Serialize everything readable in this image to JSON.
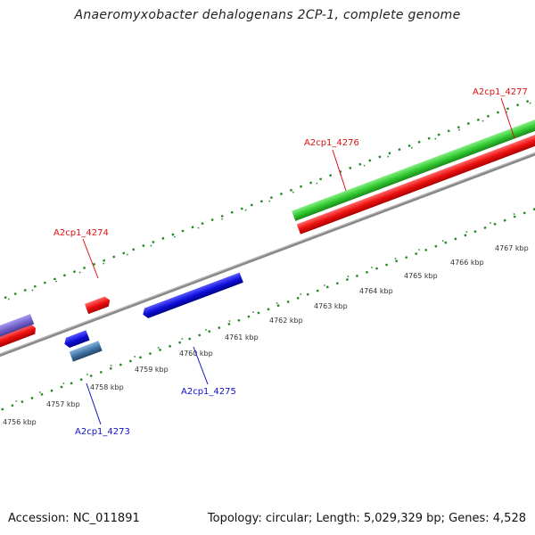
{
  "title": "Anaeromyxobacter dehalogenans 2CP-1, complete genome",
  "footer": {
    "accession": "Accession: NC_011891",
    "summary": "Topology: circular; Length: 5,029,329 bp; Genes: 4,528"
  },
  "colors": {
    "forward_gene": "#ee1111",
    "forward_gene_alt": "#33cc33",
    "reverse_gene": "#1111dd",
    "reverse_gene_alt": "#7766cc",
    "reverse_gene_steel": "#4477aa",
    "backbone": "#888888",
    "tick": "#228822",
    "forward_label": "#dd1111",
    "reverse_label": "#1111cc"
  },
  "scale": {
    "unit": "kbp",
    "tick_labels": [
      "4756 kbp",
      "4757 kbp",
      "4758 kbp",
      "4759 kbp",
      "4760 kbp",
      "4761 kbp",
      "4762 kbp",
      "4763 kbp",
      "4764 kbp",
      "4765 kbp",
      "4766 kbp",
      "4767 kbp"
    ]
  },
  "gene_labels": {
    "forward": [
      "A2cp1_4274",
      "A2cp1_4276",
      "A2cp1_4277"
    ],
    "reverse": [
      "A2cp1_4273",
      "A2cp1_4275"
    ]
  }
}
